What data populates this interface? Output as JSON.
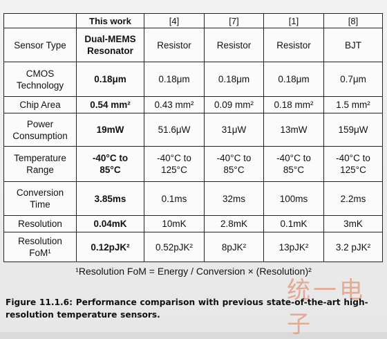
{
  "table": {
    "header": [
      "",
      "This work",
      "[4]",
      "[7]",
      "[1]",
      "[8]"
    ],
    "rows": [
      {
        "label": "Sensor Type",
        "values": [
          "Dual-MEMS\nResonator",
          "Resistor",
          "Resistor",
          "Resistor",
          "BJT"
        ]
      },
      {
        "label": "CMOS\nTechnology",
        "values": [
          "0.18μm",
          "0.18μm",
          "0.18μm",
          "0.18μm",
          "0.7μm"
        ]
      },
      {
        "label": "Chip Area",
        "values": [
          "0.54 mm²",
          "0.43 mm²",
          "0.09 mm²",
          "0.18 mm²",
          "1.5 mm²"
        ]
      },
      {
        "label": "Power\nConsumption",
        "values": [
          "19mW",
          "51.6μW",
          "31μW",
          "13mW",
          "159μW"
        ]
      },
      {
        "label": "Temperature\nRange",
        "values": [
          "-40°C to\n85°C",
          "-40°C to\n125°C",
          "-40°C to\n85°C",
          "-40°C to\n85°C",
          "-40°C to\n125°C"
        ]
      },
      {
        "label": "Conversion\nTime",
        "values": [
          "3.85ms",
          "0.1ms",
          "32ms",
          "100ms",
          "2.2ms"
        ]
      },
      {
        "label": "Resolution",
        "values": [
          "0.04mK",
          "10mK",
          "2.8mK",
          "0.1mK",
          "3mK"
        ]
      },
      {
        "label": "Resolution\nFoM¹",
        "values": [
          "0.12pJK²",
          "0.52pJK²",
          "8pJK²",
          "13pJK²",
          "3.2 pJK²"
        ]
      }
    ]
  },
  "footnote": "¹Resolution FoM = Energy / Conversion × (Resolution)²",
  "watermark": "统一电子",
  "caption": "Figure 11.1.6: Performance comparison with previous state-of-the-art high-resolution temperature sensors."
}
